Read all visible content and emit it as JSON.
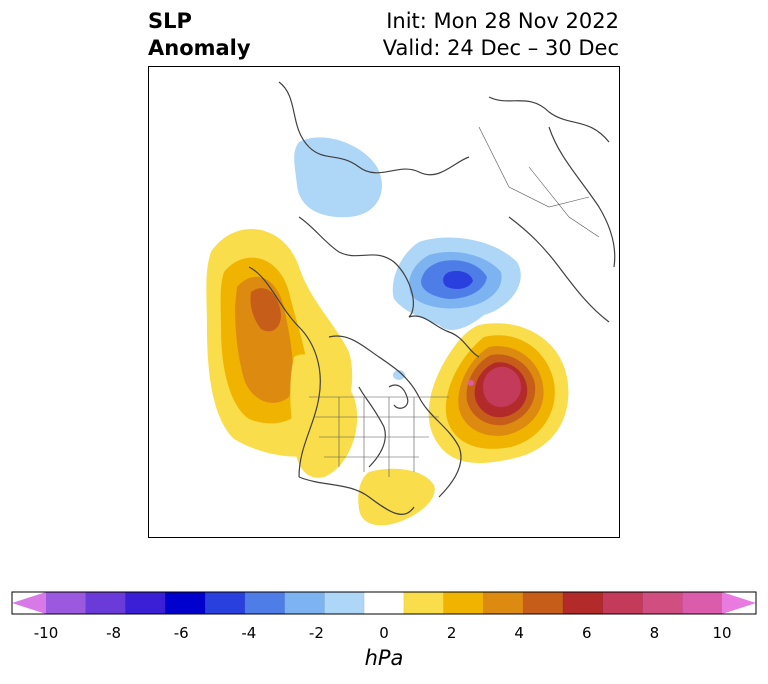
{
  "title": {
    "left_line1": "SLP",
    "left_line2": "Anomaly",
    "right_line1": "Init: Mon 28 Nov 2022",
    "right_line2": "Valid: 24 Dec – 30 Dec"
  },
  "colorbar": {
    "units": "hPa",
    "tick_labels": [
      "-10",
      "-8",
      "-6",
      "-4",
      "-2",
      "0",
      "2",
      "4",
      "6",
      "8",
      "10"
    ],
    "colors": [
      "#9b59e0",
      "#6b3bd9",
      "#3a1fd6",
      "#0000cc",
      "#2a40de",
      "#4f7de8",
      "#7db3f0",
      "#aed6f7",
      "#ffffff",
      "#f9dd4a",
      "#f0b400",
      "#dd8a10",
      "#c65d18",
      "#b22a2a",
      "#c43a5a",
      "#d14f80",
      "#dc5cac"
    ],
    "extend_low_color": "#d77ae8",
    "extend_high_color": "#e87ae0"
  },
  "map": {
    "projection": "polar-stereographic",
    "region": "Northern Hemisphere (North America / Arctic)",
    "features": [
      {
        "name": "positive-anomaly-north-atlantic",
        "type": "high",
        "peak_hpa": 9
      },
      {
        "name": "positive-anomaly-northeast-pacific",
        "type": "high",
        "peak_hpa": 5
      },
      {
        "name": "positive-anomaly-southeast-us",
        "type": "high",
        "peak_hpa": 2
      },
      {
        "name": "negative-anomaly-barents-kara",
        "type": "low",
        "peak_hpa": -4
      },
      {
        "name": "negative-anomaly-east-siberia",
        "type": "low",
        "peak_hpa": -2
      }
    ]
  }
}
